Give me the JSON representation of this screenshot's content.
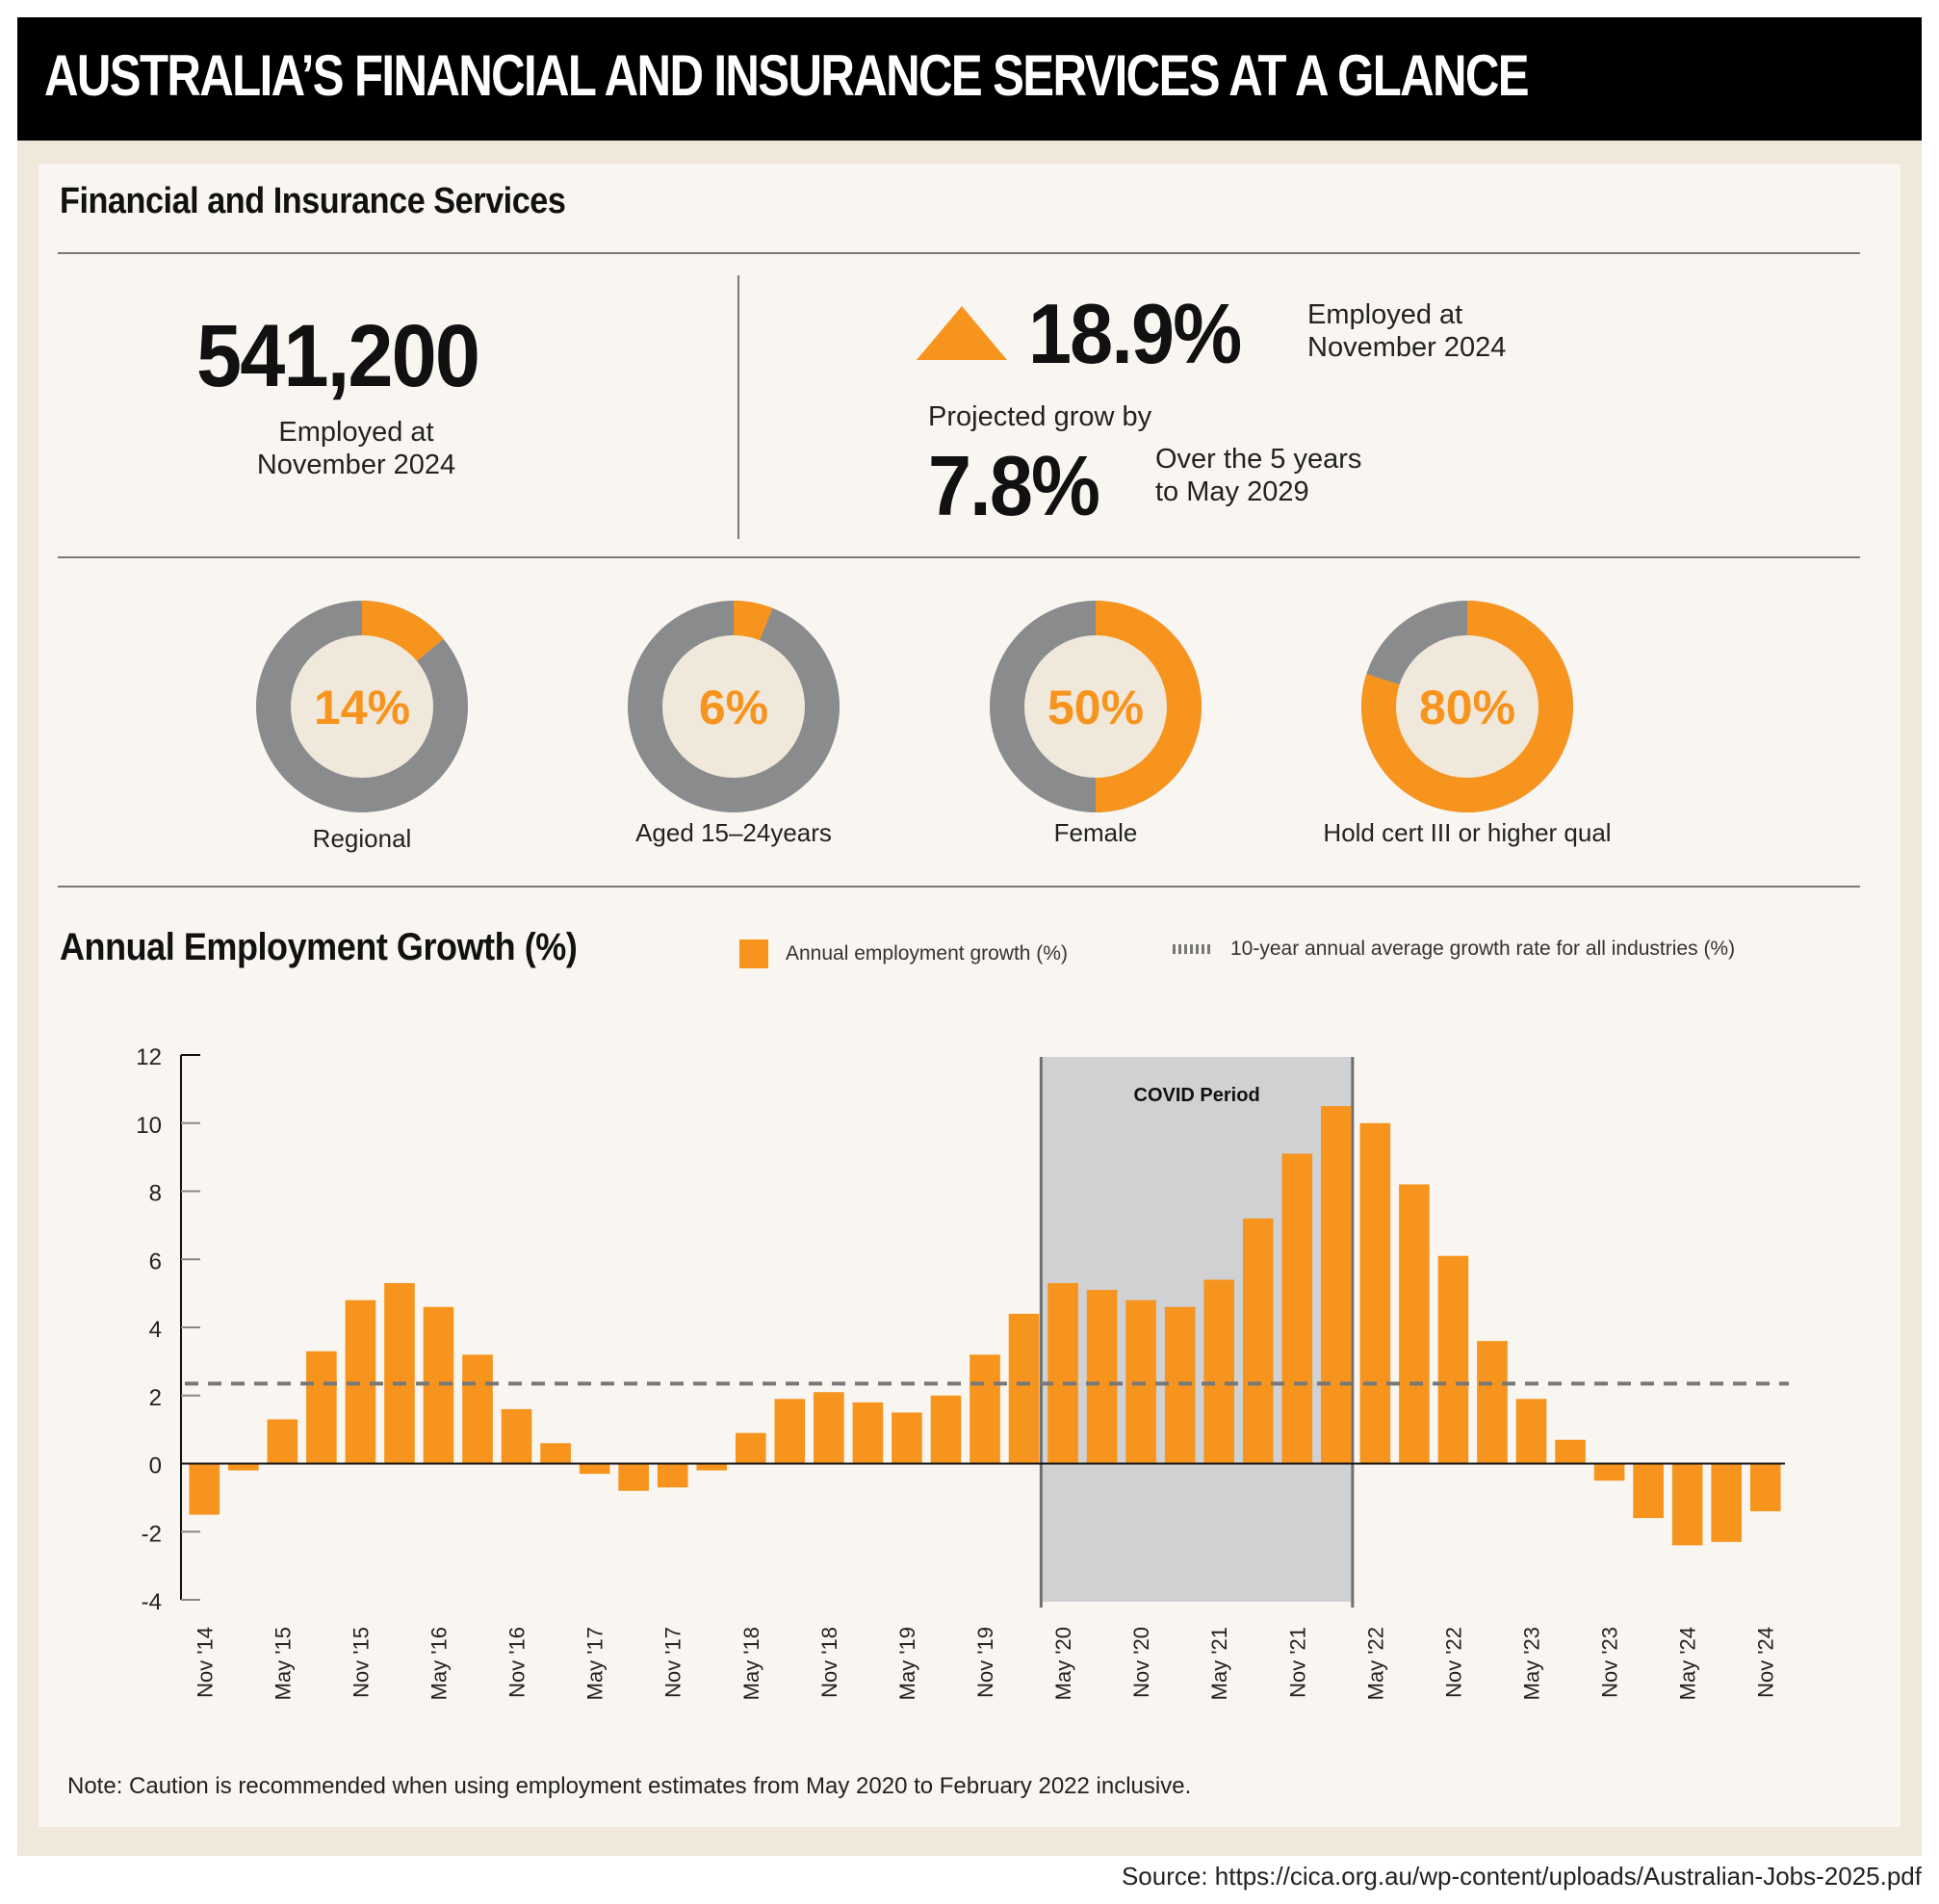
{
  "header": {
    "title": "AUSTRALIA’S FINANCIAL AND INSURANCE SERVICES AT A GLANCE"
  },
  "section": {
    "title": "Financial and Insurance Services"
  },
  "stats": {
    "employed": {
      "value": "541,200",
      "label_line1": "Employed at",
      "label_line2": "November 2024"
    },
    "growth": {
      "value": "18.9%",
      "direction": "up",
      "label_line1": "Employed at",
      "label_line2": "November 2024"
    },
    "projected": {
      "intro": "Projected grow by",
      "value": "7.8%",
      "label_line1": "Over the 5 years",
      "label_line2": "to May 2029"
    }
  },
  "donuts": [
    {
      "value_label": "14%",
      "percent": 14,
      "label": "Regional"
    },
    {
      "value_label": "6%",
      "percent": 6,
      "label": "Aged 15–24years"
    },
    {
      "value_label": "50%",
      "percent": 50,
      "label": "Female"
    },
    {
      "value_label": "80%",
      "percent": 80,
      "label": "Hold cert III or higher qual"
    }
  ],
  "colors": {
    "accent": "#f7941d",
    "grey": "#8a8b8d",
    "donut_inner": "#efe8db",
    "covid": "#d0d1d3",
    "dash": "#777777"
  },
  "chart_data": {
    "type": "bar",
    "title": "Annual Employment Growth (%)",
    "xlabel": "",
    "ylabel": "",
    "ylim": [
      -4,
      12
    ],
    "yticks": [
      -4,
      -2,
      0,
      2,
      4,
      6,
      8,
      10,
      12
    ],
    "grid": false,
    "legend": {
      "placement": "top",
      "entries": [
        "Annual employment growth (%)",
        "10-year annual average growth rate for all industries (%)"
      ]
    },
    "tick_labels": [
      "Nov '14",
      "May '15",
      "Nov '15",
      "May '16",
      "Nov '16",
      "May '17",
      "Nov '17",
      "May '18",
      "Nov '18",
      "May '19",
      "Nov '19",
      "May '20",
      "Nov '20",
      "May '21",
      "Nov '21",
      "May '22",
      "Nov '22",
      "May '23",
      "Nov '23",
      "May '24",
      "Nov '24"
    ],
    "series": [
      {
        "name": "Annual employment growth (%)",
        "values": [
          -1.5,
          -0.2,
          1.3,
          3.3,
          4.8,
          5.3,
          4.6,
          3.2,
          1.6,
          0.6,
          -0.3,
          -0.8,
          -0.7,
          -0.2,
          0.9,
          1.9,
          2.1,
          1.8,
          1.5,
          2.0,
          3.2,
          4.4,
          5.3,
          5.1,
          4.8,
          4.6,
          5.4,
          7.2,
          9.1,
          10.5,
          10.0,
          8.2,
          6.1,
          3.6,
          1.9,
          0.7,
          -0.5,
          -1.6,
          -2.4,
          -2.3,
          -1.4
        ]
      }
    ],
    "reference_line": {
      "name": "10-year annual average growth rate for all industries (%)",
      "value": 2.35
    },
    "annotation": {
      "label": "COVID Period",
      "start_index": 22,
      "end_index": 29
    }
  },
  "footer": {
    "note": "Note: Caution is recommended when using employment estimates from May 2020 to February 2022 inclusive.",
    "source": "Source: https://cica.org.au/wp-content/uploads/Australian-Jobs-2025.pdf"
  }
}
